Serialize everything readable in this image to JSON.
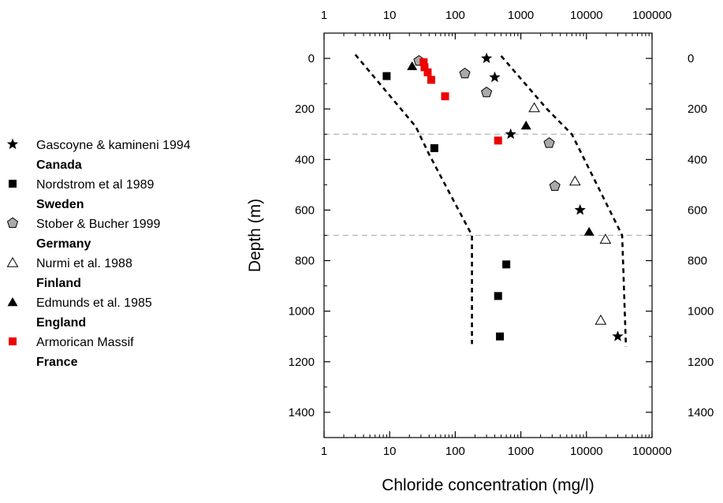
{
  "chart_data": {
    "type": "scatter",
    "xlabel": "Chloride concentration (mg/l)",
    "ylabel": "Depth (m)",
    "x_scale": "log",
    "xlim": [
      1,
      100000
    ],
    "ylim": [
      -100,
      1500
    ],
    "y_reversed": true,
    "x_ticks": [
      1,
      10,
      100,
      1000,
      10000,
      100000
    ],
    "x_tick_labels": [
      "1",
      "10",
      "100",
      "1000",
      "10000",
      "100000"
    ],
    "y_ticks": [
      0,
      200,
      400,
      600,
      800,
      1000,
      1200,
      1400
    ],
    "y_tick_labels": [
      "0",
      "200",
      "400",
      "600",
      "800",
      "1000",
      "1200",
      "1400"
    ],
    "grid": false,
    "legend_position": "left",
    "series": [
      {
        "name": "Gascoyne & kamineni 1994",
        "group": "Canada",
        "marker": "star",
        "color": "#000000",
        "points": [
          [
            300,
            0
          ],
          [
            400,
            75
          ],
          [
            700,
            300
          ],
          [
            8000,
            600
          ],
          [
            30000,
            1100
          ]
        ]
      },
      {
        "name": "Nordstrom et al 1989",
        "group": "Sweden",
        "marker": "square",
        "color": "#000000",
        "points": [
          [
            9,
            70
          ],
          [
            48,
            355
          ],
          [
            600,
            815
          ],
          [
            450,
            940
          ],
          [
            480,
            1100
          ]
        ]
      },
      {
        "name": "Stober & Bucher 1999",
        "group": "Germany",
        "marker": "pentagon",
        "color": "#a9a9a9",
        "points": [
          [
            28,
            10
          ],
          [
            140,
            60
          ],
          [
            300,
            135
          ],
          [
            2700,
            335
          ],
          [
            3300,
            505
          ]
        ]
      },
      {
        "name": "Nurmi et al. 1988",
        "group": "Finland",
        "marker": "triangle-open",
        "color": "#ffffff",
        "points": [
          [
            1600,
            195
          ],
          [
            6700,
            485
          ],
          [
            19500,
            715
          ],
          [
            16500,
            1035
          ]
        ]
      },
      {
        "name": "Edmunds et al. 1985",
        "group": "England",
        "marker": "triangle",
        "color": "#000000",
        "points": [
          [
            22,
            30
          ],
          [
            1200,
            265
          ],
          [
            11000,
            685
          ]
        ]
      },
      {
        "name": "Armorican Massif",
        "group": "France",
        "marker": "square",
        "color": "#ee0000",
        "points": [
          [
            33,
            15
          ],
          [
            34,
            35
          ],
          [
            38,
            55
          ],
          [
            43,
            85
          ],
          [
            70,
            150
          ],
          [
            450,
            325
          ]
        ]
      }
    ],
    "envelope_lines": [
      {
        "style": "dashed",
        "points": [
          [
            3,
            -15
          ],
          [
            25,
            270
          ],
          [
            40,
            380
          ],
          [
            180,
            700
          ],
          [
            180,
            1130
          ]
        ]
      },
      {
        "style": "dashed",
        "points": [
          [
            500,
            -10
          ],
          [
            2500,
            200
          ],
          [
            6000,
            300
          ],
          [
            35000,
            700
          ],
          [
            40000,
            1140
          ]
        ]
      }
    ],
    "reference_lines": [
      {
        "orientation": "horizontal",
        "style": "dashed",
        "color": "#b4b4b4",
        "y": 300
      },
      {
        "orientation": "horizontal",
        "style": "dashed",
        "color": "#b4b4b4",
        "y": 700
      }
    ]
  }
}
